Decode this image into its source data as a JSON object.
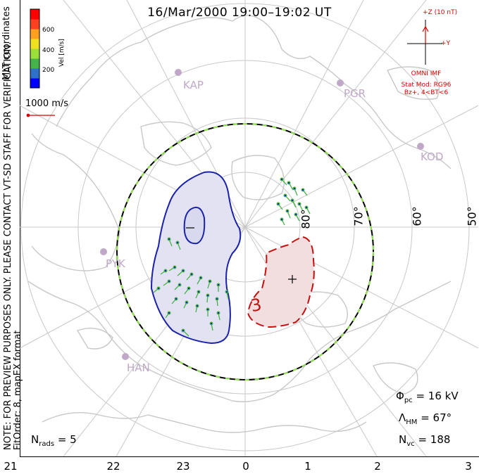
{
  "title": "16/Mar/2000 19:00–19:02 UT",
  "mlt_coordinates": "MLT coordinates",
  "preview_note_line1": "NOTE: FOR PREVIEW PURPOSES ONLY. PLEASE CONTACT VT-SD STAFF FOR VERIFICATION.",
  "preview_note_line2": "FitOrder: 8, mapEX format",
  "colorbar": {
    "label": "Vel [m/s]",
    "ticks": [
      "600",
      "400",
      "200"
    ],
    "colors": [
      "#0000ff",
      "#2d72c8",
      "#45b24a",
      "#9be03a",
      "#f0e020",
      "#ffa020",
      "#ff4020",
      "#ff0000"
    ]
  },
  "scale_vector": {
    "label": "1000 m/s",
    "color": "#d40000"
  },
  "imf": {
    "z_label": "+Z (10 nT)",
    "y_label": "+Y",
    "source": "OMNI IMF",
    "stat_mod": "Stat Mod: RG96",
    "condition": "Bz+, 4<BT<6",
    "color": "#d40000"
  },
  "stations": [
    "KAP",
    "PGR",
    "KOD",
    "PYK",
    "HAN"
  ],
  "latitude_labels": [
    "80°",
    "70°",
    "60°",
    "50°"
  ],
  "contour_labels": {
    "negative": "−",
    "positive": "+",
    "dashed_value": "3"
  },
  "stats": {
    "phi_pc_symbol": "Φ",
    "phi_pc_sub": "pc",
    "phi_pc_value": "= 16 kV",
    "lambda_hm_symbol": "Λ",
    "lambda_hm_sub": "HM",
    "lambda_hm_value": "= 67°",
    "n_vc_symbol": "N",
    "n_vc_sub": "vc",
    "n_vc_value": "= 188",
    "n_rads_symbol": "N",
    "n_rads_sub": "rads",
    "n_rads_value": "= 5"
  },
  "mlt_labels": [
    "21",
    "22",
    "23",
    "0",
    "1",
    "2",
    "3"
  ],
  "colors": {
    "negative_cell_fill": "#e2e2f2",
    "negative_cell_line": "#1a22a8",
    "positive_cell_fill": "#f2dede",
    "positive_cell_line": "#c41010",
    "boundary": "#000000",
    "boundary_dash": "#90e050",
    "coastline": "#c8c8c8",
    "grid": "#c8c8c8"
  }
}
